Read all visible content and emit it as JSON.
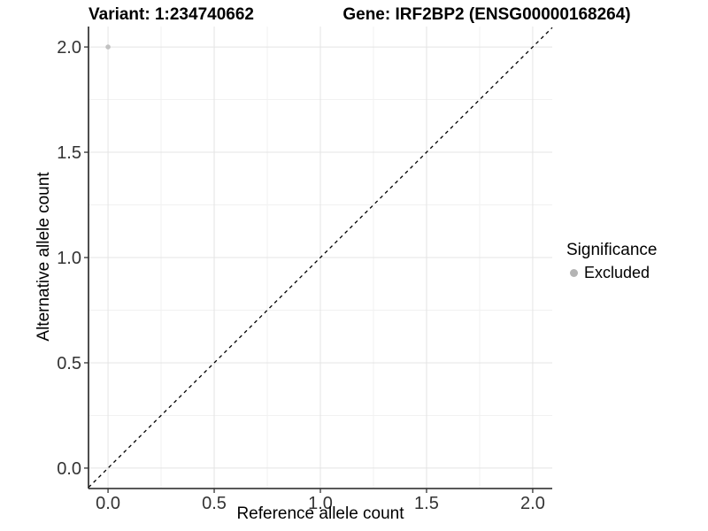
{
  "chart_data": {
    "type": "scatter",
    "titles": [
      "Variant: 1:234740662",
      "Gene: IRF2BP2 (ENSG00000168264)"
    ],
    "xlabel": "Reference allele count",
    "ylabel": "Alternative allele count",
    "xlim": [
      -0.092,
      2.092
    ],
    "ylim": [
      -0.097,
      2.097
    ],
    "x_ticks": [
      0.0,
      0.5,
      1.0,
      1.5,
      2.0
    ],
    "x_tick_labels": [
      "0.0",
      "0.5",
      "1.0",
      "1.5",
      "2.0"
    ],
    "y_ticks": [
      0.0,
      0.5,
      1.0,
      1.5,
      2.0
    ],
    "y_tick_labels": [
      "0.0",
      "0.5",
      "1.0",
      "1.5",
      "2.0"
    ],
    "x_minor_ticks": [
      0.25,
      0.75,
      1.25,
      1.75
    ],
    "y_minor_ticks": [
      0.25,
      0.75,
      1.25,
      1.75
    ],
    "grid": true,
    "points": [
      {
        "x": 0.0,
        "y": 2.0,
        "series": "Excluded"
      }
    ],
    "reference_line": {
      "slope": 1,
      "intercept": 0,
      "style": "dashed"
    },
    "legend": {
      "title": "Significance",
      "position": "right",
      "items": [
        {
          "label": "Excluded",
          "color": "#b4b4b4"
        }
      ]
    },
    "colors": {
      "background": "#ffffff",
      "point": "#c2c2c2",
      "grid_major": "#e4e4e4",
      "grid_minor": "#f1f1f1",
      "axis_line": "#222222",
      "tick_mark": "#333333",
      "tick_text": "#333333",
      "reference_line": "#000000"
    }
  }
}
